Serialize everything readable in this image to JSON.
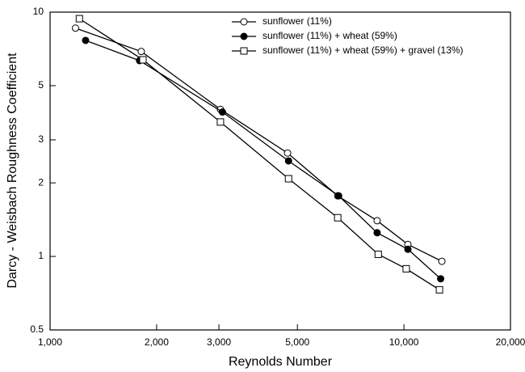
{
  "chart_data": {
    "type": "line",
    "x_label": "Reynolds Number",
    "y_label": "Darcy - Weisbach Roughness Coefficient",
    "xscale": "log",
    "yscale": "log",
    "xlim": [
      1000,
      20000
    ],
    "xticks": [
      {
        "value": 1000,
        "label": "1,000"
      },
      {
        "value": 2000,
        "label": "2,000"
      },
      {
        "value": 3000,
        "label": "3,000"
      },
      {
        "value": 5000,
        "label": "5,000"
      },
      {
        "value": 10000,
        "label": "10,000"
      },
      {
        "value": 20000,
        "label": "20,000"
      }
    ],
    "ylim": [
      0.5,
      10
    ],
    "yticks": [
      0.5,
      1,
      2,
      3,
      5,
      10
    ],
    "legend": "upper right",
    "series": [
      {
        "name": "sunflower (11%)",
        "color": "#000000",
        "marker": "open-circle",
        "x": [
          1180,
          1810,
          3030,
          4690,
          6500,
          8400,
          10260,
          12800
        ],
        "values": [
          8.6,
          6.9,
          4.0,
          2.65,
          1.77,
          1.4,
          1.12,
          0.955
        ]
      },
      {
        "name": "sunflower (11%) + wheat (59%)",
        "color": "#000000",
        "marker": "filled-circle",
        "x": [
          1260,
          1790,
          3070,
          4720,
          6540,
          8400,
          10260,
          12700
        ],
        "values": [
          7.66,
          6.33,
          3.9,
          2.46,
          1.77,
          1.25,
          1.07,
          0.81
        ]
      },
      {
        "name": "sunflower (11%) + wheat (59%) + gravel (13%)",
        "color": "#000000",
        "marker": "open-square",
        "x": [
          1210,
          1830,
          3030,
          4720,
          6500,
          8460,
          10150,
          12600
        ],
        "values": [
          9.4,
          6.38,
          3.55,
          2.08,
          1.44,
          1.02,
          0.89,
          0.73
        ]
      }
    ]
  }
}
